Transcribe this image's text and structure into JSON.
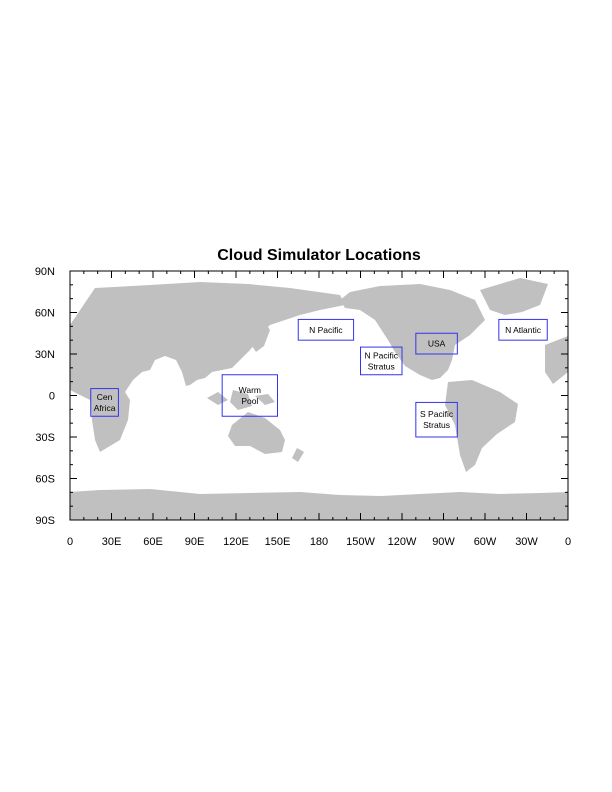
{
  "title": "Cloud Simulator Locations",
  "colors": {
    "land": "#c0c0c0",
    "box_border": "#3333ee",
    "frame": "#000000"
  },
  "map": {
    "lon_range": [
      0,
      360
    ],
    "lat_range": [
      -90,
      90
    ],
    "x_ticks": [
      {
        "lon": 0,
        "label": "0"
      },
      {
        "lon": 30,
        "label": "30E"
      },
      {
        "lon": 60,
        "label": "60E"
      },
      {
        "lon": 90,
        "label": "90E"
      },
      {
        "lon": 120,
        "label": "120E"
      },
      {
        "lon": 150,
        "label": "150E"
      },
      {
        "lon": 180,
        "label": "180"
      },
      {
        "lon": 210,
        "label": "150W"
      },
      {
        "lon": 240,
        "label": "120W"
      },
      {
        "lon": 270,
        "label": "90W"
      },
      {
        "lon": 300,
        "label": "60W"
      },
      {
        "lon": 330,
        "label": "30W"
      },
      {
        "lon": 360,
        "label": "0"
      }
    ],
    "y_ticks": [
      {
        "lat": 90,
        "label": "90N"
      },
      {
        "lat": 60,
        "label": "60N"
      },
      {
        "lat": 30,
        "label": "30N"
      },
      {
        "lat": 0,
        "label": "0"
      },
      {
        "lat": -30,
        "label": "30S"
      },
      {
        "lat": -60,
        "label": "60S"
      },
      {
        "lat": -90,
        "label": "90S"
      }
    ]
  },
  "regions": [
    {
      "lines": [
        "Cen",
        "Africa"
      ],
      "lon": [
        15,
        35
      ],
      "lat": [
        -15,
        5
      ]
    },
    {
      "lines": [
        "Warm",
        "Pool"
      ],
      "lon": [
        110,
        150
      ],
      "lat": [
        -15,
        15
      ]
    },
    {
      "lines": [
        "N Pacific"
      ],
      "lon": [
        165,
        205
      ],
      "lat": [
        40,
        55
      ]
    },
    {
      "lines": [
        "N Pacific",
        "Stratus"
      ],
      "lon": [
        210,
        240
      ],
      "lat": [
        15,
        35
      ]
    },
    {
      "lines": [
        "USA"
      ],
      "lon": [
        250,
        280
      ],
      "lat": [
        30,
        45
      ]
    },
    {
      "lines": [
        "S Pacific",
        "Stratus"
      ],
      "lon": [
        250,
        280
      ],
      "lat": [
        -30,
        -5
      ]
    },
    {
      "lines": [
        "N Atlantic"
      ],
      "lon": [
        310,
        345
      ],
      "lat": [
        40,
        55
      ]
    }
  ]
}
